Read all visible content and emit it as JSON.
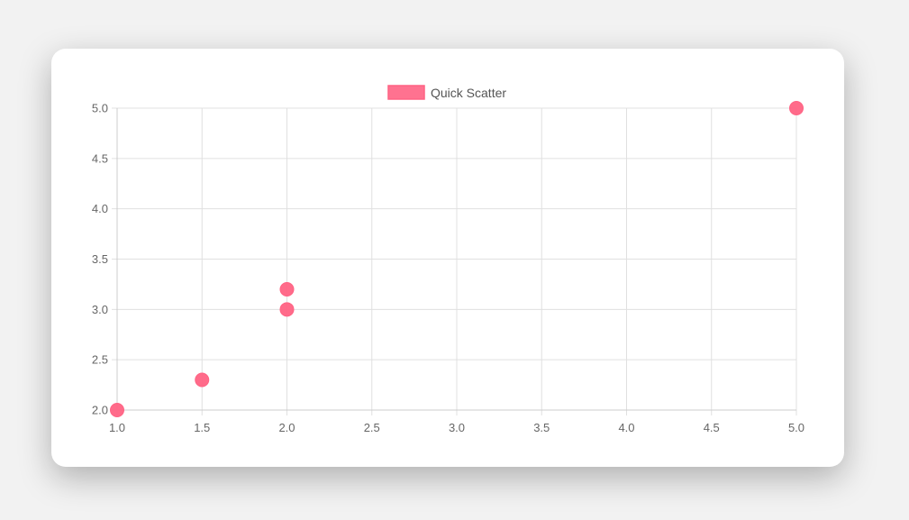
{
  "chart_data": {
    "type": "scatter",
    "title": "",
    "xlabel": "",
    "ylabel": "",
    "xlim": [
      1.0,
      5.0
    ],
    "ylim": [
      2.0,
      5.0
    ],
    "x_ticks": [
      "1.0",
      "1.5",
      "2.0",
      "2.5",
      "3.0",
      "3.5",
      "4.0",
      "4.5",
      "5.0"
    ],
    "y_ticks": [
      "2.0",
      "2.5",
      "3.0",
      "3.5",
      "4.0",
      "4.5",
      "5.0"
    ],
    "grid": true,
    "legend_position": "top-center",
    "series": [
      {
        "name": "Quick Scatter",
        "color": "#ff6384",
        "points": [
          {
            "x": 1.0,
            "y": 2.0
          },
          {
            "x": 1.5,
            "y": 2.3
          },
          {
            "x": 2.0,
            "y": 3.0
          },
          {
            "x": 2.0,
            "y": 3.2
          },
          {
            "x": 5.0,
            "y": 5.0
          }
        ]
      }
    ]
  }
}
